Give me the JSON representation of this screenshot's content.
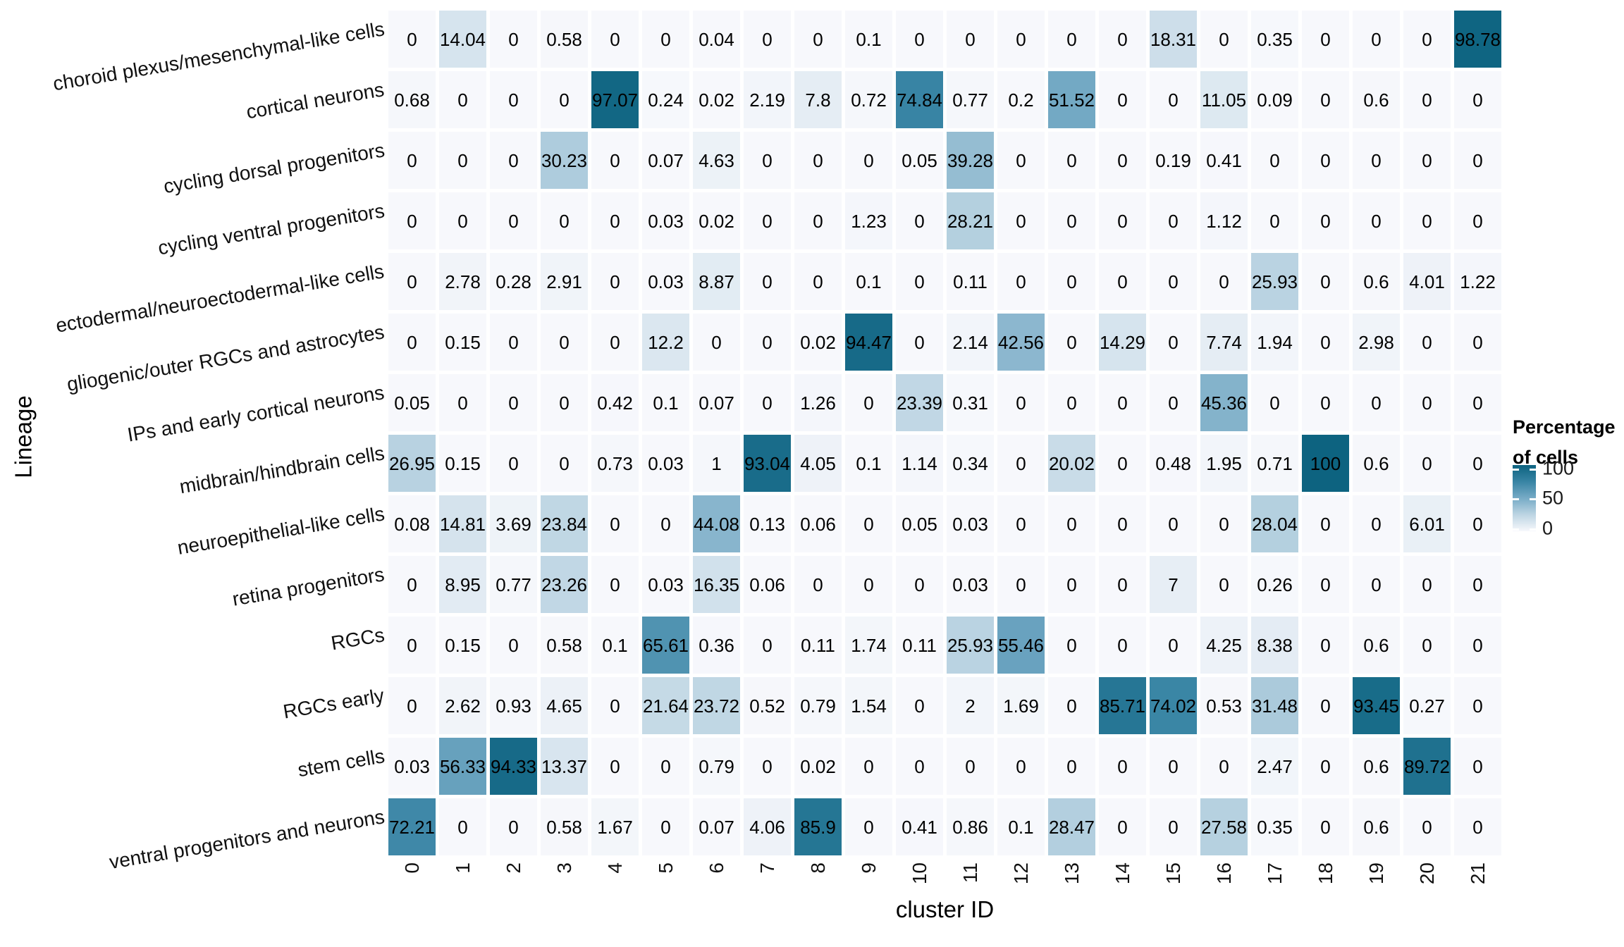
{
  "axes": {
    "x_title": "cluster ID",
    "y_title": "Lineage"
  },
  "legend": {
    "title_line1": "Percentage",
    "title_line2": "of cells",
    "tick_labels": [
      "100",
      "50",
      "0"
    ]
  },
  "chart_data": {
    "type": "heatmap",
    "xlabel": "cluster ID",
    "ylabel": "Lineage",
    "legend_title": "Percentage of cells",
    "legend_ticks": [
      100,
      50,
      0
    ],
    "value_range": [
      0,
      100
    ],
    "grid": false,
    "legend_position": "right",
    "categories_x": [
      "0",
      "1",
      "2",
      "3",
      "4",
      "5",
      "6",
      "7",
      "8",
      "9",
      "10",
      "11",
      "12",
      "13",
      "14",
      "15",
      "16",
      "17",
      "18",
      "19",
      "20",
      "21"
    ],
    "categories_y": [
      "choroid plexus/mesenchymal-like cells",
      "cortical neurons",
      "cycling dorsal progenitors",
      "cycling ventral progenitors",
      "ectodermal/neuroectodermal-like cells",
      "gliogenic/outer RGCs and astrocytes",
      "IPs and early cortical neurons",
      "midbrain/hindbrain cells",
      "neuroepithelial-like cells",
      "retina progenitors",
      "RGCs",
      "RGCs early",
      "stem cells",
      "ventral progenitors and neurons"
    ],
    "values": [
      [
        0,
        14.04,
        0,
        0.58,
        0,
        0,
        0.04,
        0,
        0,
        0.1,
        0,
        0,
        0,
        0,
        0,
        18.31,
        0,
        0.35,
        0,
        0,
        0,
        98.78
      ],
      [
        0.68,
        0,
        0,
        0,
        97.07,
        0.24,
        0.02,
        2.19,
        7.8,
        0.72,
        74.84,
        0.77,
        0.2,
        51.52,
        0,
        0,
        11.05,
        0.09,
        0,
        0.6,
        0,
        0
      ],
      [
        0,
        0,
        0,
        30.23,
        0,
        0.07,
        4.63,
        0,
        0,
        0,
        0.05,
        39.28,
        0,
        0,
        0,
        0.19,
        0.41,
        0,
        0,
        0,
        0,
        0
      ],
      [
        0,
        0,
        0,
        0,
        0,
        0.03,
        0.02,
        0,
        0,
        1.23,
        0,
        28.21,
        0,
        0,
        0,
        0,
        1.12,
        0,
        0,
        0,
        0,
        0
      ],
      [
        0,
        2.78,
        0.28,
        2.91,
        0,
        0.03,
        8.87,
        0,
        0,
        0.1,
        0,
        0.11,
        0,
        0,
        0,
        0,
        0,
        25.93,
        0,
        0.6,
        4.01,
        1.22
      ],
      [
        0,
        0.15,
        0,
        0,
        0,
        12.2,
        0,
        0,
        0.02,
        94.47,
        0,
        2.14,
        42.56,
        0,
        14.29,
        0,
        7.74,
        1.94,
        0,
        2.98,
        0,
        0
      ],
      [
        0.05,
        0,
        0,
        0,
        0.42,
        0.1,
        0.07,
        0,
        1.26,
        0,
        23.39,
        0.31,
        0,
        0,
        0,
        0,
        45.36,
        0,
        0,
        0,
        0,
        0
      ],
      [
        26.95,
        0.15,
        0,
        0,
        0.73,
        0.03,
        1,
        93.04,
        4.05,
        0.1,
        1.14,
        0.34,
        0,
        20.02,
        0,
        0.48,
        1.95,
        0.71,
        100,
        0.6,
        0,
        0
      ],
      [
        0.08,
        14.81,
        3.69,
        23.84,
        0,
        0,
        44.08,
        0.13,
        0.06,
        0,
        0.05,
        0.03,
        0,
        0,
        0,
        0,
        0,
        28.04,
        0,
        0,
        6.01,
        0
      ],
      [
        0,
        8.95,
        0.77,
        23.26,
        0,
        0.03,
        16.35,
        0.06,
        0,
        0,
        0,
        0.03,
        0,
        0,
        0,
        7,
        0,
        0.26,
        0,
        0,
        0,
        0
      ],
      [
        0,
        0.15,
        0,
        0.58,
        0.1,
        65.61,
        0.36,
        0,
        0.11,
        1.74,
        0.11,
        25.93,
        55.46,
        0,
        0,
        0,
        4.25,
        8.38,
        0,
        0.6,
        0,
        0
      ],
      [
        0,
        2.62,
        0.93,
        4.65,
        0,
        21.64,
        23.72,
        0.52,
        0.79,
        1.54,
        0,
        2,
        1.69,
        0,
        85.71,
        74.02,
        0.53,
        31.48,
        0,
        93.45,
        0.27,
        0
      ],
      [
        0.03,
        56.33,
        94.33,
        13.37,
        0,
        0,
        0.79,
        0,
        0.02,
        0,
        0,
        0,
        0,
        0,
        0,
        0,
        0,
        2.47,
        0,
        0.6,
        89.72,
        0
      ],
      [
        72.21,
        0,
        0,
        0.58,
        1.67,
        0,
        0.07,
        4.06,
        85.9,
        0,
        0.41,
        0.86,
        0.1,
        28.47,
        0,
        0,
        27.58,
        0.35,
        0,
        0.6,
        0,
        0
      ]
    ],
    "colorscale_anchors": [
      [
        0,
        "#f7f8fc"
      ],
      [
        25,
        "#bdd5e3"
      ],
      [
        50,
        "#77abc6"
      ],
      [
        75,
        "#3884a4"
      ],
      [
        100,
        "#0d6380"
      ]
    ]
  }
}
